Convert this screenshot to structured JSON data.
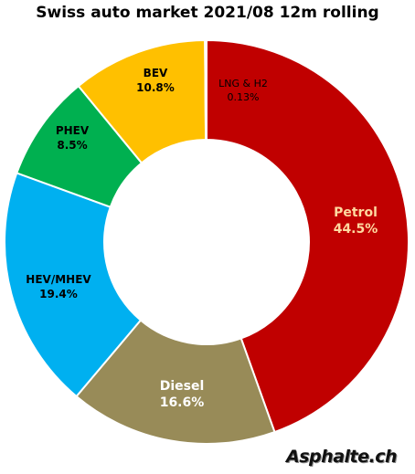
{
  "chart_data": {
    "type": "pie",
    "title": "Swiss auto market 2021/08 12m rolling",
    "donut": true,
    "slices": [
      {
        "label": "Petrol",
        "value": 44.5,
        "value_label": "44.5%",
        "color": "#c00000",
        "text_color": "#ffd9a0"
      },
      {
        "label": "Diesel",
        "value": 16.6,
        "value_label": "16.6%",
        "color": "#988b58",
        "text_color": "#ffffff"
      },
      {
        "label": "HEV/MHEV",
        "value": 19.4,
        "value_label": "19.4%",
        "color": "#00b0f0",
        "text_color": "#000000"
      },
      {
        "label": "PHEV",
        "value": 8.5,
        "value_label": "8.5%",
        "color": "#00b050",
        "text_color": "#000000"
      },
      {
        "label": "BEV",
        "value": 10.8,
        "value_label": "10.8%",
        "color": "#ffc000",
        "text_color": "#000000"
      },
      {
        "label": "LNG & H2",
        "value": 0.13,
        "value_label": "0.13%",
        "color": "#f4a460",
        "text_color": "#000000"
      }
    ]
  },
  "watermark": "Asphalte.ch"
}
